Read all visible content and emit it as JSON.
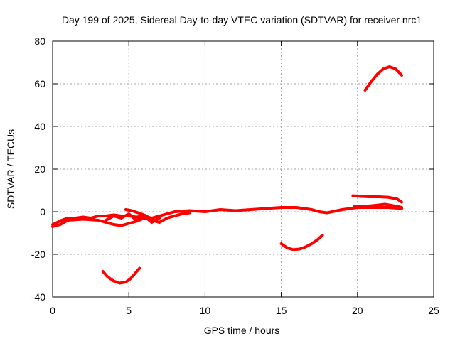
{
  "chart_data": {
    "type": "line",
    "title": "Day 199 of 2025, Sidereal Day-to-day VTEC variation (SDTVAR) for receiver nrc1",
    "xlabel": "GPS time / hours",
    "ylabel": "SDTVAR / TECUs",
    "xlim": [
      0,
      25
    ],
    "ylim": [
      -40,
      80
    ],
    "xticks": [
      0,
      5,
      10,
      15,
      20,
      25
    ],
    "yticks": [
      -40,
      -20,
      0,
      20,
      40,
      60,
      80
    ],
    "grid": true,
    "series_color": "#ff0000",
    "series": [
      {
        "name": "arc-main-upper",
        "x": [
          0.0,
          0.3,
          0.6,
          1.0,
          1.5,
          2.0,
          2.5,
          3.0,
          3.5,
          4.0,
          4.5,
          5.0,
          5.5,
          6.0,
          6.5,
          7.0,
          7.5,
          8.0,
          9.0,
          10.0,
          11.0,
          12.0,
          13.0,
          14.0,
          15.0,
          16.0,
          16.5,
          17.0,
          17.5,
          18.0,
          19.0,
          20.0,
          21.0,
          22.0,
          22.9
        ],
        "y": [
          -6,
          -5,
          -4,
          -3,
          -3,
          -2.5,
          -3,
          -2,
          -2,
          -1.5,
          -2,
          -2,
          -2.5,
          -2,
          -3,
          -2,
          -1,
          0,
          0.5,
          0,
          1,
          0.5,
          1,
          1.5,
          2,
          2,
          1.5,
          1,
          0,
          -0.5,
          1,
          2,
          2,
          2,
          1.5
        ]
      },
      {
        "name": "arc-main-lower",
        "x": [
          0.0,
          0.5,
          1.0,
          2.0,
          3.0,
          3.5,
          4.0,
          4.5,
          5.0,
          5.5,
          6.0,
          6.5,
          7.0,
          7.5,
          8.0,
          8.5,
          9.0
        ],
        "y": [
          -7,
          -6,
          -4,
          -3.5,
          -4,
          -5,
          -6,
          -6.5,
          -5.5,
          -4.5,
          -3,
          -4,
          -5,
          -3,
          -2,
          -1,
          -0.5
        ]
      },
      {
        "name": "arc-tangle",
        "x": [
          3.5,
          4.0,
          4.5,
          5.0,
          5.5,
          6.0,
          6.5,
          7.0
        ],
        "y": [
          -4,
          -2,
          -3,
          -1,
          -4,
          -2,
          -5,
          -3
        ]
      },
      {
        "name": "arc-hump",
        "x": [
          4.8,
          5.2,
          5.6,
          6.0,
          6.4,
          6.8
        ],
        "y": [
          1,
          0.5,
          -0.5,
          -1.5,
          -3,
          -4.5
        ]
      },
      {
        "name": "arc-plateau-top",
        "x": [
          19.7,
          20.2,
          20.8,
          21.4,
          22.0,
          22.6,
          22.9
        ],
        "y": [
          7.5,
          7.2,
          7.0,
          7.0,
          6.8,
          6.0,
          4.5
        ]
      },
      {
        "name": "arc-plateau-mid",
        "x": [
          19.8,
          20.5,
          21.2,
          21.8,
          22.2,
          22.6,
          22.9
        ],
        "y": [
          2.5,
          2.5,
          3.0,
          3.5,
          3.0,
          2.5,
          2.0
        ]
      },
      {
        "name": "arc-dip-1",
        "x": [
          3.3,
          3.6,
          4.0,
          4.4,
          4.8,
          5.1,
          5.4,
          5.7
        ],
        "y": [
          -28,
          -30.5,
          -32.5,
          -33.5,
          -33,
          -31.5,
          -29,
          -26.5
        ]
      },
      {
        "name": "arc-dip-2",
        "x": [
          15.0,
          15.4,
          15.8,
          16.2,
          16.6,
          17.0,
          17.4,
          17.7
        ],
        "y": [
          -15,
          -17,
          -17.8,
          -17.5,
          -16.5,
          -15,
          -13,
          -11
        ]
      },
      {
        "name": "arc-peak",
        "x": [
          20.5,
          20.9,
          21.3,
          21.7,
          22.1,
          22.5,
          22.9
        ],
        "y": [
          57,
          61,
          64.5,
          67,
          68,
          67,
          64
        ]
      }
    ]
  }
}
